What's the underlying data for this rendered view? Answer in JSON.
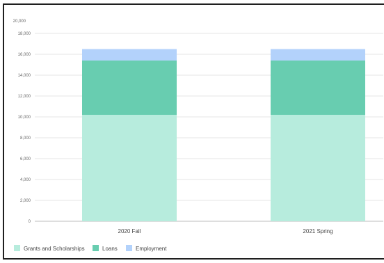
{
  "chart_data": {
    "type": "bar",
    "stacked": true,
    "title": "",
    "xlabel": "",
    "ylabel": "",
    "categories": [
      "2020 Fall",
      "2021 Spring"
    ],
    "y_ticks": [
      "0",
      "2,000",
      "4,000",
      "6,000",
      "8,000",
      "10,000",
      "12,000",
      "14,000",
      "16,000",
      "18,000"
    ],
    "y_max_label": "20,000",
    "ylim": [
      0,
      20000
    ],
    "grid": true,
    "legend_position": "bottom-left",
    "series": [
      {
        "name": "Grants and Scholarships",
        "color": "#b7ecdd",
        "values": [
          10200,
          10200
        ]
      },
      {
        "name": "Loans",
        "color": "#68cdb0",
        "values": [
          5200,
          5200
        ]
      },
      {
        "name": "Employment",
        "color": "#b3d2fb",
        "values": [
          1100,
          1100
        ]
      }
    ]
  }
}
